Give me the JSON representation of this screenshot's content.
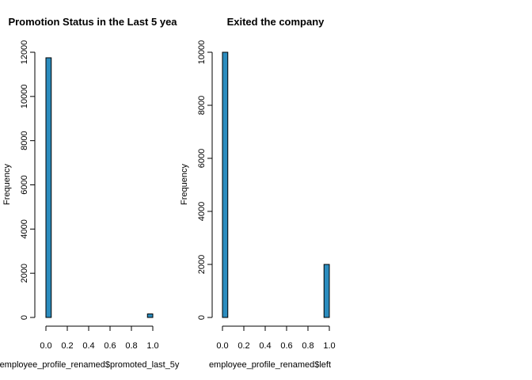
{
  "chart_data": [
    {
      "type": "bar",
      "title": "Promotion Status in the Last 5 yea",
      "xlabel": "employee_profile_renamed$promoted_last_5y",
      "ylabel": "Frequency",
      "bins": [
        [
          0.0,
          0.05
        ],
        [
          0.95,
          1.0
        ]
      ],
      "values": [
        11750,
        160
      ],
      "xlim": [
        0,
        1
      ],
      "ylim": [
        0,
        12000
      ],
      "xticks": [
        "0.0",
        "0.2",
        "0.4",
        "0.6",
        "0.8",
        "1.0"
      ],
      "yticks": [
        "0",
        "2000",
        "4000",
        "6000",
        "8000",
        "10000",
        "12000"
      ],
      "bar_color": "#2b8cbe",
      "grid": false
    },
    {
      "type": "bar",
      "title": "Exited the company",
      "xlabel": "employee_profile_renamed$left",
      "ylabel": "Frequency",
      "bins": [
        [
          0.0,
          0.05
        ],
        [
          0.95,
          1.0
        ]
      ],
      "values": [
        10000,
        2000
      ],
      "xlim": [
        0,
        1
      ],
      "ylim": [
        0,
        10000
      ],
      "xticks": [
        "0.0",
        "0.2",
        "0.4",
        "0.6",
        "0.8",
        "1.0"
      ],
      "yticks": [
        "0",
        "2000",
        "4000",
        "6000",
        "8000",
        "10000"
      ],
      "bar_color": "#2b8cbe",
      "grid": false
    }
  ]
}
